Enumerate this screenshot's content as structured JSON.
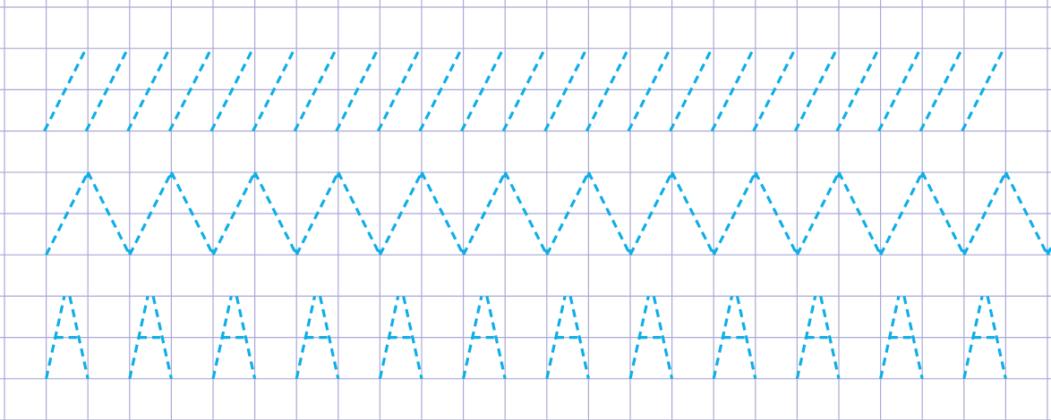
{
  "worksheet": {
    "type": "handwriting-practice-sheet",
    "grid": {
      "columns": 25,
      "rows": 10
    },
    "rows": [
      {
        "pattern": "slash",
        "repeats": 23
      },
      {
        "pattern": "zigzag",
        "peaks": 12
      },
      {
        "pattern": "letter",
        "letter": "A",
        "repeats": 12
      }
    ]
  },
  "colors": {
    "grid": "#aaa8d6",
    "trace": "#10aee6",
    "background": "#ffffff"
  }
}
